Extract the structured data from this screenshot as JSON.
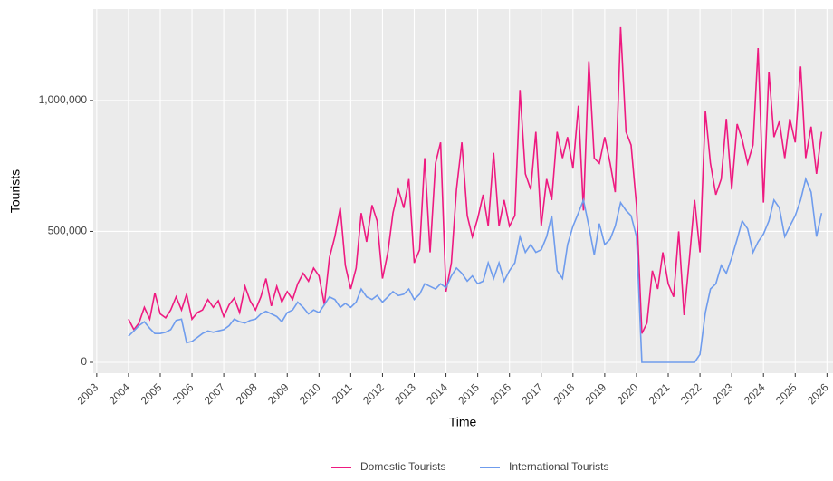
{
  "chart_data": {
    "type": "line",
    "x_label": "Time",
    "y_label": "Tourists",
    "x": [
      2004,
      2004.17,
      2004.33,
      2004.5,
      2004.67,
      2004.83,
      2005,
      2005.17,
      2005.33,
      2005.5,
      2005.67,
      2005.83,
      2006,
      2006.17,
      2006.33,
      2006.5,
      2006.67,
      2006.83,
      2007,
      2007.17,
      2007.33,
      2007.5,
      2007.67,
      2007.83,
      2008,
      2008.17,
      2008.33,
      2008.5,
      2008.67,
      2008.83,
      2009,
      2009.17,
      2009.33,
      2009.5,
      2009.67,
      2009.83,
      2010,
      2010.17,
      2010.33,
      2010.5,
      2010.67,
      2010.83,
      2011,
      2011.17,
      2011.33,
      2011.5,
      2011.67,
      2011.83,
      2012,
      2012.17,
      2012.33,
      2012.5,
      2012.67,
      2012.83,
      2013,
      2013.17,
      2013.33,
      2013.5,
      2013.67,
      2013.83,
      2014,
      2014.17,
      2014.33,
      2014.5,
      2014.67,
      2014.83,
      2015,
      2015.17,
      2015.33,
      2015.5,
      2015.67,
      2015.83,
      2016,
      2016.17,
      2016.33,
      2016.5,
      2016.67,
      2016.83,
      2017,
      2017.17,
      2017.33,
      2017.5,
      2017.67,
      2017.83,
      2018,
      2018.17,
      2018.33,
      2018.5,
      2018.67,
      2018.83,
      2019,
      2019.17,
      2019.33,
      2019.5,
      2019.67,
      2019.83,
      2020,
      2020.17,
      2020.33,
      2020.5,
      2020.67,
      2020.83,
      2021,
      2021.17,
      2021.33,
      2021.5,
      2021.67,
      2021.83,
      2022,
      2022.17,
      2022.33,
      2022.5,
      2022.67,
      2022.83,
      2023,
      2023.17,
      2023.33,
      2023.5,
      2023.67,
      2023.83,
      2024,
      2024.17,
      2024.33,
      2024.5,
      2024.67,
      2024.83,
      2025,
      2025.17,
      2025.33,
      2025.5,
      2025.67,
      2025.83
    ],
    "series": [
      {
        "name": "Domestic Tourists",
        "color": "#ee1a80",
        "values": [
          165000,
          125000,
          150000,
          210000,
          165000,
          265000,
          185000,
          170000,
          200000,
          250000,
          200000,
          260000,
          165000,
          190000,
          200000,
          240000,
          210000,
          235000,
          175000,
          220000,
          245000,
          190000,
          290000,
          235000,
          200000,
          250000,
          320000,
          215000,
          290000,
          230000,
          270000,
          240000,
          300000,
          340000,
          310000,
          360000,
          330000,
          220000,
          400000,
          480000,
          590000,
          370000,
          280000,
          360000,
          570000,
          460000,
          600000,
          540000,
          320000,
          420000,
          570000,
          660000,
          590000,
          700000,
          380000,
          430000,
          780000,
          420000,
          760000,
          840000,
          270000,
          380000,
          660000,
          840000,
          560000,
          480000,
          550000,
          640000,
          520000,
          800000,
          520000,
          620000,
          520000,
          560000,
          1040000,
          720000,
          660000,
          880000,
          520000,
          700000,
          620000,
          880000,
          780000,
          860000,
          740000,
          980000,
          580000,
          1150000,
          780000,
          760000,
          860000,
          760000,
          650000,
          1280000,
          880000,
          830000,
          600000,
          110000,
          150000,
          350000,
          280000,
          420000,
          300000,
          250000,
          500000,
          180000,
          400000,
          620000,
          420000,
          960000,
          760000,
          640000,
          700000,
          930000,
          660000,
          910000,
          850000,
          760000,
          830000,
          1200000,
          610000,
          1110000,
          860000,
          920000,
          780000,
          930000,
          840000,
          1130000,
          780000,
          900000,
          720000,
          880000
        ]
      },
      {
        "name": "International Tourists",
        "color": "#6f9ced",
        "values": [
          100000,
          120000,
          140000,
          155000,
          130000,
          110000,
          110000,
          115000,
          125000,
          160000,
          165000,
          75000,
          80000,
          95000,
          110000,
          120000,
          115000,
          120000,
          125000,
          140000,
          165000,
          155000,
          150000,
          160000,
          165000,
          185000,
          195000,
          185000,
          175000,
          155000,
          190000,
          200000,
          230000,
          210000,
          185000,
          200000,
          190000,
          220000,
          250000,
          240000,
          210000,
          225000,
          210000,
          230000,
          280000,
          250000,
          240000,
          255000,
          230000,
          250000,
          270000,
          255000,
          260000,
          280000,
          240000,
          260000,
          300000,
          290000,
          280000,
          300000,
          285000,
          330000,
          360000,
          340000,
          310000,
          330000,
          300000,
          310000,
          380000,
          320000,
          380000,
          310000,
          350000,
          380000,
          480000,
          420000,
          450000,
          420000,
          430000,
          480000,
          560000,
          350000,
          320000,
          450000,
          520000,
          570000,
          620000,
          520000,
          410000,
          530000,
          450000,
          470000,
          520000,
          610000,
          580000,
          560000,
          480000,
          0,
          0,
          0,
          0,
          0,
          0,
          0,
          0,
          0,
          0,
          0,
          30000,
          190000,
          280000,
          300000,
          370000,
          340000,
          400000,
          470000,
          540000,
          510000,
          420000,
          460000,
          490000,
          540000,
          620000,
          590000,
          480000,
          520000,
          560000,
          620000,
          700000,
          650000,
          480000,
          570000
        ]
      }
    ],
    "xlim": [
      2002.89,
      2026.19
    ],
    "xticks": [
      2003,
      2004,
      2005,
      2006,
      2007,
      2008,
      2009,
      2010,
      2011,
      2012,
      2013,
      2014,
      2015,
      2016,
      2017,
      2018,
      2019,
      2020,
      2021,
      2022,
      2023,
      2024,
      2025,
      2026
    ],
    "ylim": [
      -41500,
      1349000
    ],
    "yticks": [
      0,
      {
        "value": 500000,
        "label": "500,000"
      },
      {
        "value": 1000000,
        "label": "1,000,000"
      }
    ],
    "grid": true,
    "legend": "bottom"
  }
}
